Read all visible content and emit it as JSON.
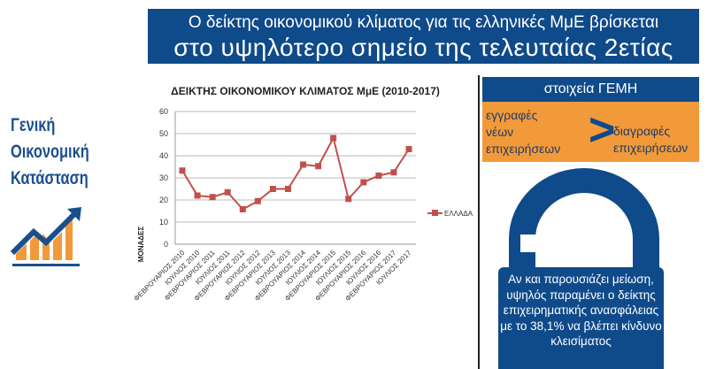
{
  "header": {
    "line1": "Ο δείκτης οικονομικού κλίματος για τις ελληνικές ΜμΕ βρίσκεται",
    "line2": "στο υψηλότερο σημείο της τελευταίας 2ετίας"
  },
  "left": {
    "title_lines": [
      "Γενική",
      "Οικονομική",
      "Κατάσταση"
    ],
    "icon": "growth-chart-icon"
  },
  "right": {
    "gemh_title": "στοιχεία ΓΕΜΗ",
    "registrations": [
      "εγγραφές",
      "νέων",
      "επιχειρήσεων"
    ],
    "comparison": ">",
    "deletions": [
      "διαγραφές",
      "επιχειρήσεων"
    ],
    "icon": "padlock-icon",
    "info": "Αν και παρουσιάζει μείωση, υψηλός παραμένει ο δείκτης επιχειρηματικής ανασφάλειας με το 38,1% να βλέπει κίνδυνο κλεισίματος"
  },
  "colors": {
    "brand_blue": "#0f4a8a",
    "orange": "#f29a3a",
    "series": "#c0504d"
  },
  "chart_data": {
    "type": "line",
    "title": "ΔΕΙΚΤΗΣ ΟΙΚΟΝΟΜΙΚΟΥ ΚΛΙΜΑΤΟΣ ΜμΕ (2010-2017)",
    "xlabel": "",
    "ylabel": "ΜΟΝΑΔΕΣ",
    "ylim": [
      0,
      60
    ],
    "yticks": [
      0,
      10,
      20,
      30,
      40,
      50,
      60
    ],
    "grid": true,
    "legend": "right",
    "categories": [
      "ΦΕΒΡΟΥΑΡΙΟΣ 2010",
      "ΙΟΥΛΙΟΣ 2010",
      "ΦΕΒΡΟΥΑΡΙΟΣ 2011",
      "ΙΟΥΛΙΟΣ 2011",
      "ΦΕΒΡΟΥΑΡΙΟΣ 2012",
      "ΙΟΥΛΙΟΣ 2012",
      "ΦΕΒΡΟΥΑΡΙΟΣ 2013",
      "ΙΟΥΛΙΟΣ 2013",
      "ΦΕΒΡΟΥΑΡΙΟΣ 2014",
      "ΙΟΥΛΙΟΣ 2014",
      "ΦΕΒΡΟΥΑΡΙΟΣ 2015",
      "ΙΟΥΛΙΟΣ 2015",
      "ΦΕΒΡΟΥΑΡΙΟΣ 2016",
      "ΙΟΥΛΙΟΣ 2016",
      "ΦΕΒΡΟΥΑΡΙΟΣ 2017",
      "ΙΟΥΛΙΟΣ 2017"
    ],
    "series": [
      {
        "name": "ΕΛΛΑΔΑ",
        "values": [
          33.3,
          22,
          21.3,
          23.5,
          15.8,
          19.5,
          25,
          25,
          36,
          35.3,
          48,
          20.5,
          28,
          31,
          32.5,
          43
        ]
      }
    ]
  }
}
